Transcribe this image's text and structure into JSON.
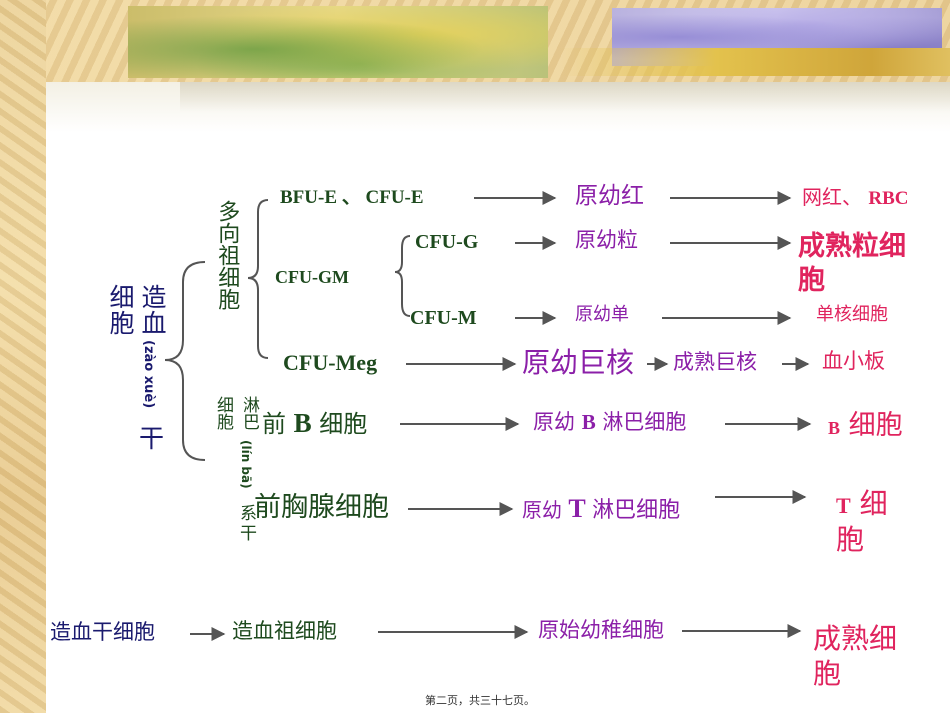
{
  "nodes": {
    "stem_1": "细胞",
    "stem_2": "造血",
    "stem_pinyin": "(zào xuè)",
    "stem_3": "干",
    "multi_progenitor": "多向祖细胞",
    "lymph_progenitor_a": "细胞",
    "lymph_progenitor_b": "淋巴",
    "lymph_pinyin": "(lín bā)",
    "lymph_xi": "系",
    "lymph_gan": "干",
    "bfu_e": "BFU-E 、 CFU-E",
    "cfu_g": "CFU-G",
    "cfu_gm": "CFU-GM",
    "cfu_m": "CFU-M",
    "cfu_meg": "CFU-Meg",
    "pre_b_pre": "前",
    "pre_b_b": "B",
    "pre_b_cell": "细胞",
    "pre_thymus": "前胸腺细胞",
    "proto_red": "原幼红",
    "proto_gran": "原幼粒",
    "proto_mono": "原幼单",
    "proto_mega": "原幼巨核",
    "mature_mega": "成熟巨核",
    "proto_b_pre": "原幼",
    "proto_b_b": "B",
    "proto_b_post": "淋巴细胞",
    "proto_t_pre": "原幼",
    "proto_t_t": "T",
    "proto_t_post": "淋巴细胞",
    "retic_a": "网红、",
    "retic_b": "RBC",
    "mature_gran": "成熟粒细胞",
    "monocyte": "单核细胞",
    "platelet": "血小板",
    "b_cell_b": "B",
    "b_cell_txt": "细胞",
    "t_cell_t": "T",
    "t_cell_txt": "细胞",
    "summary_1": "造血干细胞",
    "summary_2": "造血祖细胞",
    "summary_3": "原始幼稚细胞",
    "summary_4": "成熟细胞"
  },
  "footer": "第二页，共三十七页。",
  "colors": {
    "green": "#1e4a1e",
    "navy": "#1a1a6e",
    "purple": "#8b1fa8",
    "red": "#e0245e"
  }
}
